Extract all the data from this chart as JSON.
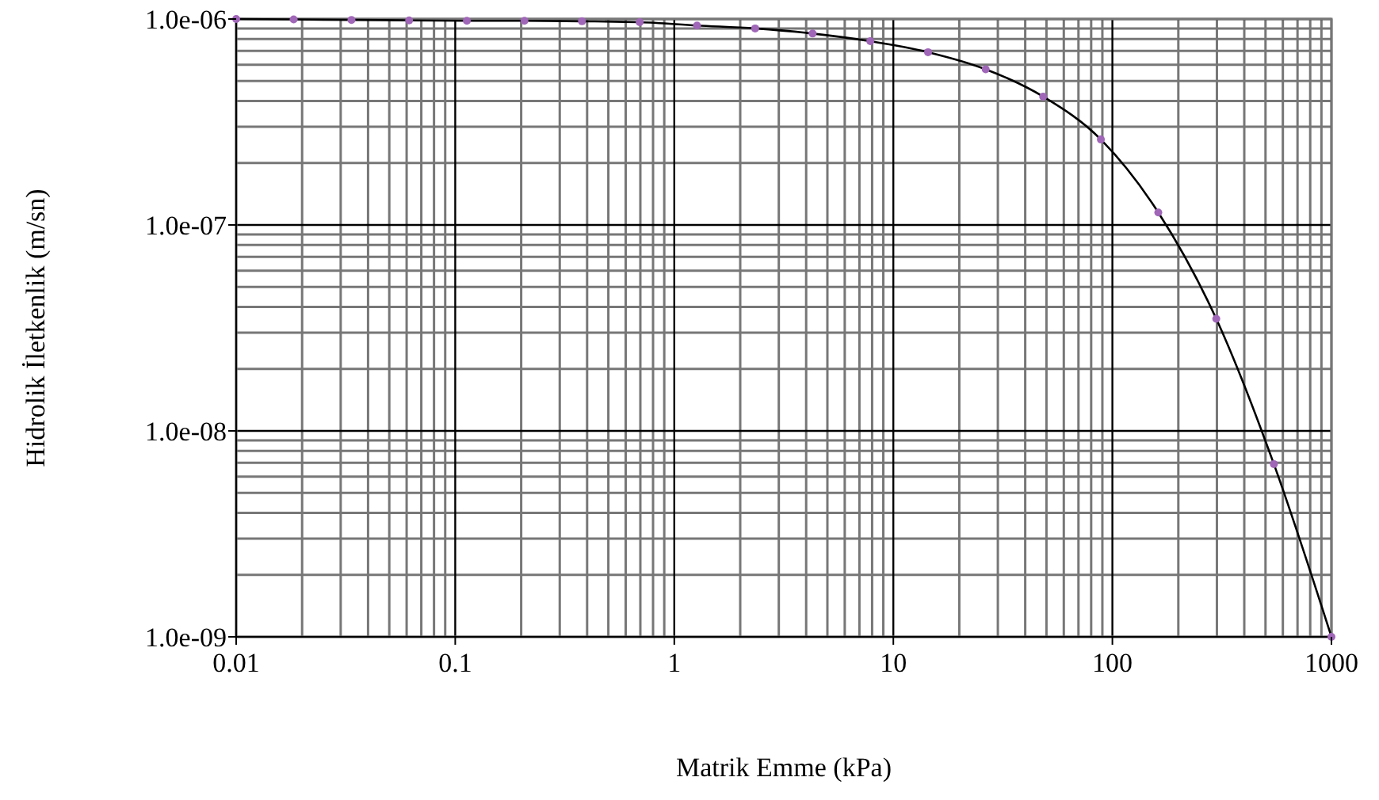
{
  "chart_data": {
    "type": "line",
    "xlabel": "Matrik Emme (kPa)",
    "ylabel": "Hidrolik İletkenlik (m/sn)",
    "log": "xy",
    "grid": true,
    "xlim": [
      0.01,
      1000
    ],
    "xticks": [
      0.01,
      0.1,
      1,
      10,
      100,
      1000
    ],
    "ylim": [
      1e-09,
      1e-06
    ],
    "yticks": [
      {
        "value": 1e-09,
        "label": "1.0e-09"
      },
      {
        "value": 1e-08,
        "label": "1.0e-08"
      },
      {
        "value": 1e-07,
        "label": "1.0e-07"
      },
      {
        "value": 1e-06,
        "label": "1.0e-06"
      }
    ],
    "x": [
      0.01,
      0.0183,
      0.0336,
      0.0616,
      0.113,
      0.207,
      0.379,
      0.695,
      1.27,
      2.34,
      4.28,
      7.85,
      14.4,
      26.4,
      48.3,
      88.6,
      162,
      298,
      546,
      1000
    ],
    "series": [
      {
        "color": "#000000",
        "values": [
          1e-06,
          9.95e-07,
          9.9e-07,
          9.85e-07,
          9.8e-07,
          9.8e-07,
          9.75e-07,
          9.65e-07,
          9.3e-07,
          9e-07,
          8.5e-07,
          7.8e-07,
          6.9e-07,
          5.7e-07,
          4.2e-07,
          2.6e-07,
          1.15e-07,
          3.5e-08,
          6.9e-09,
          1e-09
        ]
      },
      {
        "type": "scatter",
        "color": "#a066b8",
        "marker": "circle",
        "values": [
          1e-06,
          9.95e-07,
          9.9e-07,
          9.85e-07,
          9.8e-07,
          9.8e-07,
          9.75e-07,
          9.65e-07,
          9.3e-07,
          9e-07,
          8.5e-07,
          7.8e-07,
          6.9e-07,
          5.7e-07,
          4.2e-07,
          2.6e-07,
          1.15e-07,
          3.5e-08,
          6.9e-09,
          1e-09
        ]
      }
    ]
  }
}
